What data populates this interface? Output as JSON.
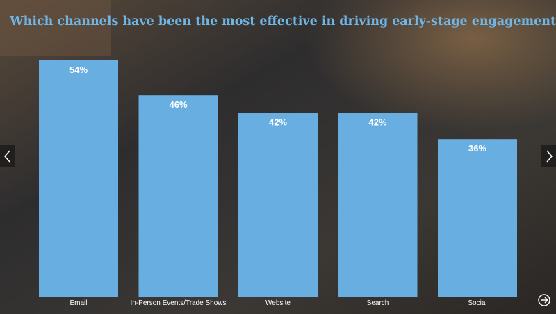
{
  "chart_data": {
    "type": "bar",
    "title": "Which channels have been the most effective in driving early-stage engagement?",
    "categories": [
      "Email",
      "In-Person Events/Trade Shows",
      "Website",
      "Search",
      "Social"
    ],
    "values": [
      54,
      46,
      42,
      42,
      36
    ],
    "value_labels": [
      "54%",
      "46%",
      "42%",
      "42%",
      "36%"
    ],
    "color": "#68aee0"
  }
}
